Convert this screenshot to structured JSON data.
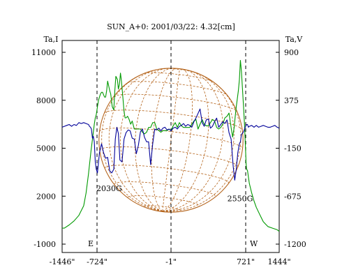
{
  "chart_data": {
    "type": "line",
    "title": "SUN_A+0: 2001/03/22: 4.32[cm]",
    "left_axis": {
      "label": "Ta,I",
      "ticks": [
        {
          "label": "11000",
          "value": 11000
        },
        {
          "label": "8000",
          "value": 8000
        },
        {
          "label": "5000",
          "value": 5000
        },
        {
          "label": "2000",
          "value": 2000
        },
        {
          "label": "-1000",
          "value": -1000
        }
      ],
      "range": [
        -1000,
        11000
      ]
    },
    "right_axis": {
      "label": "Ta,V",
      "ticks": [
        {
          "label": "900",
          "value": 900
        },
        {
          "label": "375",
          "value": 375
        },
        {
          "label": "-150",
          "value": -150
        },
        {
          "label": "-675",
          "value": -675
        },
        {
          "label": "-1200",
          "value": -1200
        }
      ],
      "range": [
        -1200,
        900
      ]
    },
    "x_axis": {
      "ticks": [
        {
          "label": "-1446\"",
          "value": -1446
        },
        {
          "label": "-724\"",
          "value": -724
        },
        {
          "label": "-1\"",
          "value": -1
        },
        {
          "label": "721\"",
          "value": 721
        },
        {
          "label": "1444\"",
          "value": 1444
        }
      ],
      "range": [
        -1446,
        1444
      ]
    },
    "vlines": [
      {
        "x": -724,
        "label": "E"
      },
      {
        "x": -1,
        "label": ""
      },
      {
        "x": 721,
        "label": "W"
      }
    ],
    "annotations": [
      {
        "text": "2030G",
        "x": -724,
        "y": 2500
      },
      {
        "text": "2550G",
        "x": 550,
        "y": 1850
      }
    ],
    "sun_disk": {
      "center_x": -1,
      "radius_arcsec": 700,
      "color": "#b5651d"
    },
    "series": [
      {
        "axis": "left",
        "color": "#009900",
        "x": [
          -1446,
          -1400,
          -1300,
          -1200,
          -1100,
          -1000,
          -950,
          -900,
          -850,
          -800,
          -780,
          -760,
          -740,
          -730,
          -720,
          -710,
          -700,
          -690,
          -680,
          -670,
          -650,
          -640,
          -630,
          -620,
          -600,
          -590,
          -575,
          -560,
          -550,
          -540,
          -525,
          -515,
          -505,
          -495,
          -485,
          -470,
          -460,
          -450,
          -440,
          -425,
          -410,
          -395,
          -380,
          -360,
          -340,
          -320,
          -300,
          -280,
          -260,
          -240,
          -220,
          -200,
          -180,
          -160,
          -140,
          -120,
          -100,
          -80,
          -60,
          -40,
          -20,
          0,
          20,
          40,
          60,
          80,
          100,
          120,
          140,
          160,
          180,
          200,
          220,
          240,
          260,
          280,
          300,
          320,
          340,
          360,
          380,
          400,
          420,
          440,
          460,
          480,
          500,
          520,
          540,
          560,
          580,
          595,
          610,
          620,
          630,
          640,
          650,
          660,
          670,
          680,
          690,
          700,
          710,
          720,
          730,
          740,
          760,
          780,
          800,
          850,
          900,
          950,
          1000,
          1050,
          1100,
          1200,
          1300,
          1400,
          1444
        ],
        "y": [
          0,
          0,
          200,
          450,
          800,
          1400,
          2200,
          3400,
          4800,
          6000,
          6500,
          6900,
          7100,
          7300,
          7600,
          8000,
          8200,
          8400,
          8500,
          8500,
          8200,
          8200,
          8600,
          9200,
          8600,
          8400,
          7600,
          7400,
          8600,
          9500,
          9300,
          8700,
          9000,
          9700,
          9200,
          8100,
          7300,
          6900,
          6900,
          7000,
          6800,
          6500,
          6700,
          6200,
          6200,
          6200,
          6200,
          6000,
          5900,
          6000,
          6300,
          6300,
          6600,
          6600,
          6200,
          6100,
          6000,
          6100,
          6100,
          6100,
          6200,
          6100,
          6400,
          6600,
          6300,
          6600,
          6400,
          6300,
          6300,
          6300,
          6300,
          6500,
          6700,
          6800,
          6200,
          6500,
          6800,
          6500,
          6400,
          6400,
          6600,
          6800,
          6700,
          6300,
          6200,
          6300,
          6500,
          6900,
          7000,
          7200,
          6300,
          5700,
          6300,
          7000,
          7600,
          8100,
          8600,
          9300,
          10500,
          9800,
          8700,
          7600,
          6400,
          4800,
          4000,
          3700,
          3600,
          3200,
          2800,
          2200,
          1700,
          1300,
          1000,
          700,
          400,
          100,
          0,
          -100,
          -200
        ]
      },
      {
        "axis": "right",
        "color": "#000099",
        "x": [
          -1446,
          -1400,
          -1350,
          -1300,
          -1250,
          -1200,
          -1150,
          -1100,
          -1050,
          -1000,
          -950,
          -900,
          -880,
          -860,
          -840,
          -820,
          -800,
          -780,
          -760,
          -740,
          -720,
          -700,
          -680,
          -660,
          -640,
          -620,
          -600,
          -580,
          -560,
          -545,
          -530,
          -515,
          -500,
          -480,
          -460,
          -440,
          -420,
          -400,
          -380,
          -360,
          -340,
          -320,
          -300,
          -280,
          -260,
          -240,
          -220,
          -200,
          -180,
          -160,
          -140,
          -120,
          -100,
          -80,
          -60,
          -40,
          -20,
          0,
          20,
          40,
          60,
          80,
          100,
          120,
          140,
          160,
          180,
          200,
          220,
          240,
          260,
          280,
          300,
          320,
          340,
          360,
          380,
          400,
          420,
          440,
          460,
          480,
          500,
          520,
          540,
          560,
          580,
          600,
          615,
          630,
          645,
          660,
          670,
          680,
          700,
          720,
          740,
          760,
          780,
          800,
          850,
          900,
          950,
          1000,
          1050,
          1100,
          1150,
          1200,
          1250,
          1300,
          1350,
          1400,
          1444
        ],
        "y": [
          80,
          90,
          100,
          110,
          90,
          110,
          100,
          130,
          120,
          130,
          120,
          110,
          90,
          80,
          60,
          -40,
          -20,
          -80,
          -300,
          -380,
          -420,
          -200,
          -100,
          -200,
          -260,
          -250,
          -400,
          -420,
          -380,
          -50,
          80,
          10,
          -280,
          -300,
          -50,
          20,
          50,
          40,
          -40,
          -50,
          -210,
          -120,
          30,
          60,
          -30,
          -80,
          -80,
          -330,
          -100,
          60,
          50,
          70,
          40,
          70,
          80,
          50,
          60,
          40,
          70,
          80,
          60,
          90,
          100,
          120,
          90,
          110,
          100,
          80,
          140,
          180,
          230,
          280,
          130,
          90,
          160,
          170,
          70,
          90,
          140,
          180,
          80,
          110,
          140,
          120,
          160,
          20,
          -50,
          -350,
          -500,
          -380,
          -200,
          -100,
          -80,
          0,
          30,
          90,
          110,
          110,
          80,
          90,
          100,
          80,
          100,
          80,
          90,
          100,
          90,
          80,
          80,
          90,
          100,
          80,
          70
        ]
      }
    ]
  }
}
